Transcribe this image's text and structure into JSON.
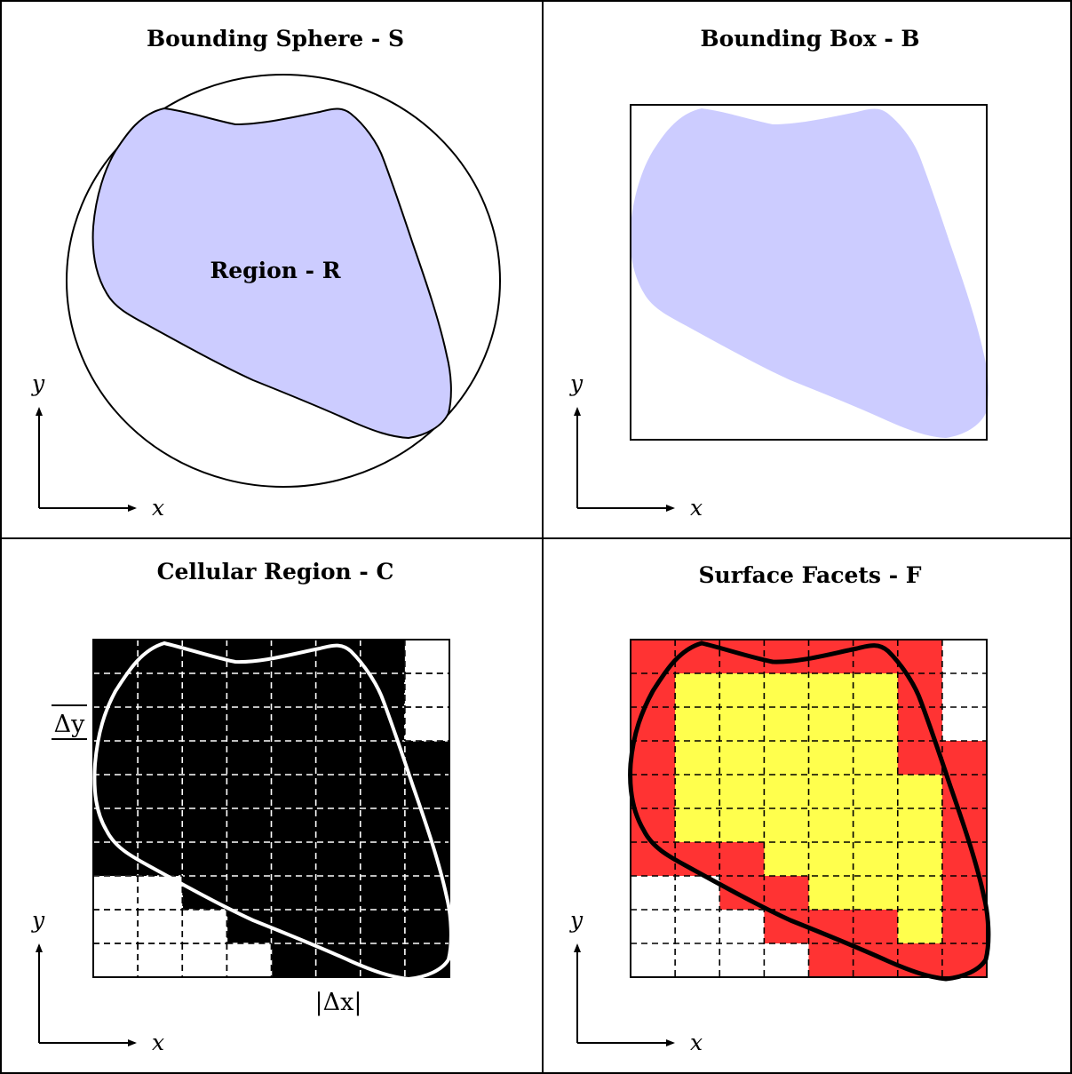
{
  "panels": {
    "sphere": {
      "title": "Bounding Sphere - S",
      "region_label": "Region - R"
    },
    "box": {
      "title": "Bounding Box - B"
    },
    "cellular": {
      "title": "Cellular Region - C",
      "dy_label": "Δy",
      "dx_label": "|Δx|",
      "grid": {
        "cols": 8,
        "rows": 10
      },
      "cells": [
        "11111110",
        "11111110",
        "11111110",
        "11111111",
        "11111111",
        "11111111",
        "11111111",
        "00111111",
        "00011111",
        "00001111"
      ]
    },
    "facets": {
      "title": "Surface Facets - F",
      "grid": {
        "cols": 8,
        "rows": 10
      },
      "cells": [
        "RRRRRRRW",
        "RYYYYYRW",
        "RYYYYYRW",
        "RYYYYYRR",
        "RYYYYYYR",
        "RYYYYYYR",
        "RRRYYYYR",
        "WWRRYYYR",
        "WWWRRRYR",
        "WWWWRRRR"
      ]
    }
  },
  "axes": {
    "x": "x",
    "y": "y"
  },
  "colors": {
    "region_fill": "#ccccff",
    "cell_filled": "#000000",
    "facet_surface": "#ff3333",
    "facet_interior": "#ffff4d",
    "empty": "#ffffff"
  }
}
